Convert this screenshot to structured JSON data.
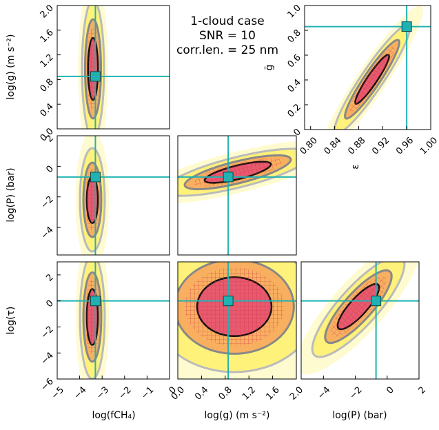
{
  "chart_data": [
    {
      "type": "scatter",
      "ylabel": "log(g) (m s⁻²)",
      "xlim": [
        -5,
        0
      ],
      "ylim": [
        0,
        2
      ],
      "yticks": [
        {
          "value": 0,
          "label": "0.0"
        },
        0.4,
        0.8,
        1.2,
        1.6,
        {
          "value": 2,
          "label": "2.0"
        }
      ],
      "x": [
        -3.3
      ],
      "values": [
        0.85
      ],
      "color": "#20b2b2",
      "annotations": [
        "1-cloud case",
        "SNR = 10",
        "corr.len. = 25 nm"
      ]
    },
    {
      "type": "scatter",
      "xlabel": "ε",
      "ylabel": "ḡ",
      "xlim": [
        0.79,
        1.0
      ],
      "ylim": [
        0,
        1
      ],
      "xticks": [
        {
          "value": 0.8,
          "label": "0.80"
        },
        0.84,
        0.88,
        0.92,
        0.96,
        {
          "value": 1,
          "label": "1.00"
        }
      ],
      "yticks": [
        0,
        0.2,
        0.4,
        0.6,
        0.8,
        {
          "value": 1,
          "label": "1.0"
        }
      ],
      "x": [
        0.96
      ],
      "values": [
        0.83
      ],
      "color": "#20b2b2"
    },
    {
      "type": "scatter",
      "ylabel": "log(P) (bar)",
      "xlim": [
        -5,
        0
      ],
      "ylim": [
        -5.8,
        2
      ],
      "yticks": [
        {
          "value": -4,
          "label": "−4"
        },
        {
          "value": -2,
          "label": "−2"
        },
        0,
        2
      ],
      "x": [
        -3.3
      ],
      "values": [
        -0.7
      ],
      "color": "#20b2b2"
    },
    {
      "type": "scatter",
      "xlim": [
        0,
        2
      ],
      "ylim": [
        -5.8,
        2
      ],
      "x": [
        0.85
      ],
      "values": [
        -0.7
      ],
      "color": "#20b2b2"
    },
    {
      "type": "scatter",
      "xlabel": "log(fCH₄)",
      "ylabel": "log(τ)",
      "xlim": [
        -5,
        0
      ],
      "ylim": [
        -6,
        3
      ],
      "xticks": [
        {
          "value": -5,
          "label": "−5"
        },
        {
          "value": -4,
          "label": "−4"
        },
        {
          "value": -3,
          "label": "−3"
        },
        {
          "value": -2,
          "label": "−2"
        },
        {
          "value": -1,
          "label": "−1"
        },
        0
      ],
      "yticks": [
        {
          "value": -6,
          "label": "−6"
        },
        {
          "value": -4,
          "label": "−4"
        },
        {
          "value": -2,
          "label": "−2"
        },
        0,
        2
      ],
      "x": [
        -3.3
      ],
      "values": [
        0
      ],
      "color": "#20b2b2"
    },
    {
      "type": "scatter",
      "xlabel": "log(g) (m s⁻²)",
      "xlim": [
        0,
        2
      ],
      "ylim": [
        -6,
        3
      ],
      "xticks": [
        {
          "value": 0,
          "label": "0.0"
        },
        0.4,
        0.8,
        1.2,
        1.6,
        {
          "value": 2,
          "label": "2.0"
        }
      ],
      "x": [
        0.85
      ],
      "values": [
        0
      ],
      "color": "#20b2b2"
    },
    {
      "type": "scatter",
      "xlabel": "log(P) (bar)",
      "xlim": [
        -5.4,
        2
      ],
      "ylim": [
        -6,
        3
      ],
      "xticks": [
        {
          "value": -4,
          "label": "−4"
        },
        {
          "value": -2,
          "label": "−2"
        },
        0,
        2
      ],
      "x": [
        -0.7
      ],
      "values": [
        0
      ],
      "color": "#20b2b2"
    }
  ]
}
